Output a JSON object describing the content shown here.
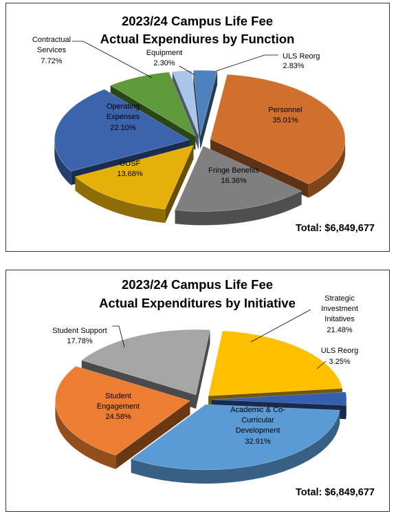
{
  "chart_data": [
    {
      "type": "pie",
      "title_lines": [
        "2023/24 Campus Life Fee",
        "Actual Expendiures by Function"
      ],
      "total": "Total:  $6,849,677",
      "slices": [
        {
          "name": "ULS  Reorg",
          "value": 2.83,
          "value_label": "2.83%",
          "color": "#4f81bd"
        },
        {
          "name": "Personnel",
          "value": 35.01,
          "value_label": "35.01%",
          "color": "#d0702c"
        },
        {
          "name": "Fringe Benefits",
          "value": 16.36,
          "value_label": "16.36%",
          "color": "#7f7f7f"
        },
        {
          "name": "GUSF",
          "value": 13.68,
          "value_label": "13.68%",
          "color": "#e6b00a"
        },
        {
          "name": "Operating Expenses",
          "value": 22.1,
          "value_label": "22.10%",
          "color": "#3b64ad"
        },
        {
          "name": "Contractual Services",
          "value": 7.72,
          "value_label": "7.72%",
          "color": "#5f9a3a"
        },
        {
          "name": "Equipment",
          "value": 2.3,
          "value_label": "2.30%",
          "color": "#a9c6e8"
        }
      ]
    },
    {
      "type": "pie",
      "title_lines": [
        "2023/24 Campus Life Fee",
        "Actual Expenditures by Initiative"
      ],
      "total": "Total:  $6,849,677",
      "slices": [
        {
          "name": "Strategic Investment Initatives",
          "value": 21.48,
          "value_label": "21.48%",
          "color": "#ffc000"
        },
        {
          "name": "ULS Reorg",
          "value": 3.25,
          "value_label": "3.25%",
          "color": "#3560b0"
        },
        {
          "name": "Academic & Co-Curricular Development",
          "value": 32.91,
          "value_label": "32.91%",
          "color": "#5b9bd5"
        },
        {
          "name": "Student Engagement",
          "value": 24.58,
          "value_label": "24.58%",
          "color": "#ed7d31"
        },
        {
          "name": "Student Support",
          "value": 17.78,
          "value_label": "17.78%",
          "color": "#a5a5a5"
        }
      ]
    }
  ]
}
